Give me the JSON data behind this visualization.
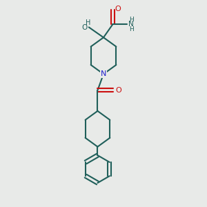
{
  "bg_color": "#e8eae8",
  "bond_color": "#1f5f5a",
  "N_color": "#2020cc",
  "O_color": "#cc1010",
  "lw": 1.5,
  "fig_size": [
    3.0,
    3.0
  ],
  "dpi": 100,
  "xlim": [
    0,
    10
  ],
  "ylim": [
    0,
    10
  ]
}
